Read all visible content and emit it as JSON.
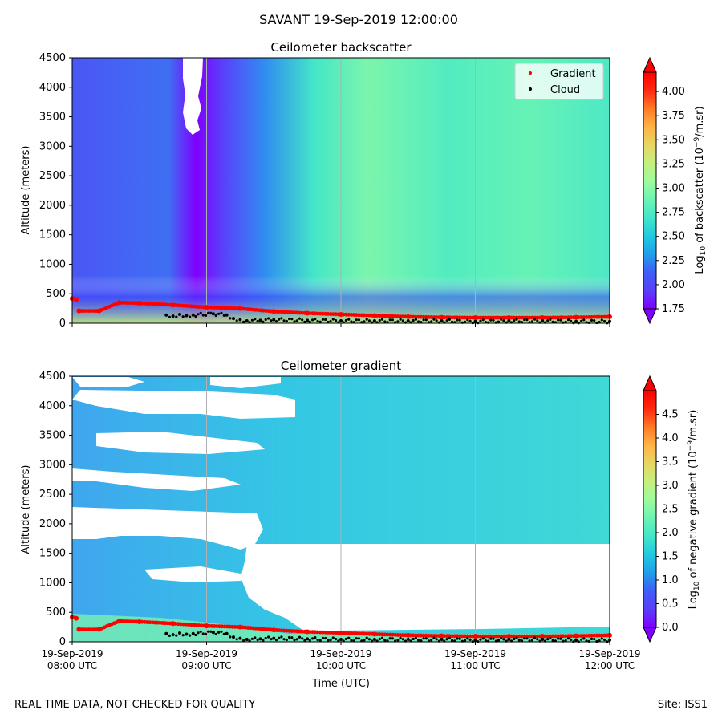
{
  "figure": {
    "suptitle": "SAVANT 19-Sep-2019 12:00:00",
    "footer_left": "REAL TIME DATA, NOT CHECKED FOR QUALITY",
    "footer_right": "Site: ISS1"
  },
  "colors": {
    "gradient_marker": "#ff0000",
    "cloud_marker": "#000000",
    "grid": "#b0b0b0",
    "colormap": [
      "#7f00ff",
      "#5a3ffb",
      "#3f5ff6",
      "#1f9fea",
      "#20c9e0",
      "#44e6c8",
      "#6cf4b4",
      "#9dfb9c",
      "#c4f07f",
      "#e8d664",
      "#ffb445",
      "#ff7a26",
      "#ff2a10",
      "#ff0000"
    ]
  },
  "chart_data": [
    {
      "type": "heatmap",
      "title": "Ceilometer backscatter",
      "xlabel": "",
      "ylabel": "Altitude (meters)",
      "ylim": [
        0,
        4500
      ],
      "yticks": [
        0,
        500,
        1000,
        1500,
        2000,
        2500,
        3000,
        3500,
        4000,
        4500
      ],
      "xticks": [
        "19-Sep-2019\n08:00 UTC",
        "19-Sep-2019\n09:00 UTC",
        "19-Sep-2019\n10:00 UTC",
        "19-Sep-2019\n11:00 UTC",
        "19-Sep-2019\n12:00 UTC"
      ],
      "grid": "vertical",
      "legend": {
        "position": "top-right",
        "entries": [
          "Gradient",
          "Cloud"
        ]
      },
      "colorbar": {
        "label": "Log10 of backscatter (10^-9/m.sr)",
        "min": 1.75,
        "max": 4.2,
        "ticks": [
          "1.75",
          "2.00",
          "2.25",
          "2.50",
          "2.75",
          "3.00",
          "3.25",
          "3.50",
          "3.75",
          "4.00"
        ],
        "extend": "both"
      },
      "series": [
        {
          "name": "Gradient",
          "type": "scatter",
          "points": [
            [
              0.0,
              420
            ],
            [
              0.03,
              400
            ],
            [
              0.05,
              210
            ],
            [
              0.2,
              210
            ],
            [
              0.35,
              350
            ],
            [
              0.5,
              340
            ],
            [
              0.75,
              310
            ],
            [
              1.0,
              270
            ],
            [
              1.25,
              250
            ],
            [
              1.5,
              200
            ],
            [
              1.75,
              170
            ],
            [
              2.0,
              150
            ],
            [
              2.25,
              130
            ],
            [
              2.5,
              110
            ],
            [
              2.75,
              100
            ],
            [
              3.0,
              95
            ],
            [
              3.25,
              95
            ],
            [
              3.5,
              95
            ],
            [
              3.75,
              100
            ],
            [
              4.0,
              110
            ]
          ]
        },
        {
          "name": "Cloud",
          "type": "scatter",
          "points": [
            [
              0.7,
              140
            ],
            [
              0.75,
              120
            ],
            [
              0.8,
              150
            ],
            [
              0.85,
              130
            ],
            [
              0.9,
              140
            ],
            [
              1.05,
              160
            ],
            [
              1.15,
              140
            ],
            [
              1.2,
              80
            ],
            [
              1.25,
              60
            ],
            [
              1.3,
              40
            ],
            [
              1.4,
              50
            ],
            [
              1.5,
              60
            ],
            [
              1.75,
              50
            ],
            [
              2.0,
              40
            ],
            [
              2.25,
              40
            ],
            [
              2.5,
              40
            ],
            [
              2.75,
              40
            ],
            [
              3.0,
              30
            ],
            [
              3.25,
              40
            ],
            [
              3.5,
              40
            ],
            [
              3.75,
              30
            ],
            [
              4.0,
              30
            ]
          ]
        }
      ]
    },
    {
      "type": "heatmap",
      "title": "Ceilometer gradient",
      "xlabel": "Time (UTC)",
      "ylabel": "Altitude (meters)",
      "ylim": [
        0,
        4500
      ],
      "yticks": [
        0,
        500,
        1000,
        1500,
        2000,
        2500,
        3000,
        3500,
        4000,
        4500
      ],
      "xticks": [
        "19-Sep-2019\n08:00 UTC",
        "19-Sep-2019\n09:00 UTC",
        "19-Sep-2019\n10:00 UTC",
        "19-Sep-2019\n11:00 UTC",
        "19-Sep-2019\n12:00 UTC"
      ],
      "grid": "vertical",
      "colorbar": {
        "label": "Log10 of negative gradient (10^-9/m.sr)",
        "min": 0.0,
        "max": 5.0,
        "ticks": [
          "0.0",
          "0.5",
          "1.0",
          "1.5",
          "2.0",
          "2.5",
          "3.0",
          "3.5",
          "4.0",
          "4.5"
        ],
        "extend": "both"
      },
      "series": [
        {
          "name": "Gradient",
          "type": "scatter",
          "points": [
            [
              0.0,
              420
            ],
            [
              0.03,
              400
            ],
            [
              0.05,
              210
            ],
            [
              0.2,
              210
            ],
            [
              0.35,
              350
            ],
            [
              0.5,
              340
            ],
            [
              0.75,
              310
            ],
            [
              1.0,
              270
            ],
            [
              1.25,
              250
            ],
            [
              1.5,
              200
            ],
            [
              1.75,
              170
            ],
            [
              2.0,
              150
            ],
            [
              2.25,
              130
            ],
            [
              2.5,
              110
            ],
            [
              2.75,
              100
            ],
            [
              3.0,
              95
            ],
            [
              3.25,
              95
            ],
            [
              3.5,
              95
            ],
            [
              3.75,
              100
            ],
            [
              4.0,
              110
            ]
          ]
        },
        {
          "name": "Cloud",
          "type": "scatter",
          "points": [
            [
              0.7,
              140
            ],
            [
              0.75,
              120
            ],
            [
              0.8,
              150
            ],
            [
              0.85,
              130
            ],
            [
              0.9,
              140
            ],
            [
              1.05,
              160
            ],
            [
              1.15,
              140
            ],
            [
              1.2,
              80
            ],
            [
              1.25,
              60
            ],
            [
              1.3,
              40
            ],
            [
              1.4,
              50
            ],
            [
              1.5,
              60
            ],
            [
              1.75,
              50
            ],
            [
              2.0,
              40
            ],
            [
              2.25,
              40
            ],
            [
              2.5,
              40
            ],
            [
              2.75,
              40
            ],
            [
              3.0,
              30
            ],
            [
              3.25,
              40
            ],
            [
              3.5,
              40
            ],
            [
              3.75,
              30
            ],
            [
              4.0,
              30
            ]
          ]
        }
      ]
    }
  ]
}
